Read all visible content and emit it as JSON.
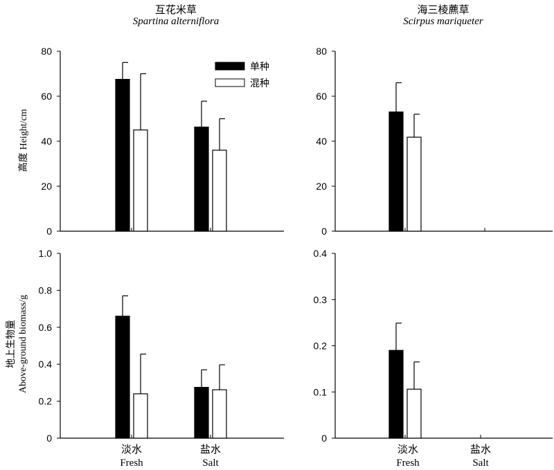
{
  "chart_data": [
    {
      "id": "p1",
      "type": "bar",
      "title": "互花米草",
      "subtitle": "Spartina alterniflora",
      "ylabel_cn": "高度",
      "ylabel": "Height/cm",
      "ylim": [
        0,
        80
      ],
      "yticks": [
        "0",
        "20",
        "40",
        "60",
        "80"
      ],
      "yticks_values": [
        0,
        20,
        40,
        60,
        80
      ],
      "categories": [
        "淡水",
        "盐水"
      ],
      "series": [
        {
          "name": "单种",
          "color": "#000000",
          "values": [
            67.5,
            46.3
          ],
          "errors": [
            7.5,
            11.5
          ]
        },
        {
          "name": "混种",
          "color": "#ffffff",
          "values": [
            45.0,
            36.0
          ],
          "errors": [
            25.0,
            14.0
          ]
        }
      ]
    },
    {
      "id": "p2",
      "type": "bar",
      "title": "海三棱藨草",
      "subtitle": "Scirpus mariqueter",
      "ylim": [
        0,
        80
      ],
      "yticks": [
        "0",
        "20",
        "40",
        "60",
        "80"
      ],
      "yticks_values": [
        0,
        20,
        40,
        60,
        80
      ],
      "categories": [
        "淡水",
        "盐水"
      ],
      "series": [
        {
          "name": "单种",
          "color": "#000000",
          "values": [
            53.0,
            null
          ],
          "errors": [
            13.0,
            null
          ]
        },
        {
          "name": "混种",
          "color": "#ffffff",
          "values": [
            41.8,
            null
          ],
          "errors": [
            10.2,
            null
          ]
        }
      ]
    },
    {
      "id": "p3",
      "type": "bar",
      "ylabel_cn": "地上生物量",
      "ylabel": "Above-ground biomass/g",
      "ylim": [
        0,
        1.0
      ],
      "yticks": [
        "0",
        "0.2",
        "0.4",
        "0.6",
        "0.8",
        "1.0"
      ],
      "yticks_values": [
        0,
        0.2,
        0.4,
        0.6,
        0.8,
        1.0
      ],
      "categories": [
        "淡水",
        "盐水"
      ],
      "categories_en": [
        "Fresh",
        "Salt"
      ],
      "series": [
        {
          "name": "单种",
          "color": "#000000",
          "values": [
            0.66,
            0.275
          ],
          "errors": [
            0.11,
            0.095
          ]
        },
        {
          "name": "混种",
          "color": "#ffffff",
          "values": [
            0.24,
            0.262
          ],
          "errors": [
            0.215,
            0.135
          ]
        }
      ]
    },
    {
      "id": "p4",
      "type": "bar",
      "ylim": [
        0,
        0.4
      ],
      "yticks": [
        "0",
        "0.1",
        "0.2",
        "0.3",
        "0.4"
      ],
      "yticks_values": [
        0,
        0.1,
        0.2,
        0.3,
        0.4
      ],
      "categories": [
        "淡水",
        "盐水"
      ],
      "categories_en": [
        "Fresh",
        "Salt"
      ],
      "series": [
        {
          "name": "单种",
          "color": "#000000",
          "values": [
            0.19,
            null
          ],
          "errors": [
            0.059,
            null
          ]
        },
        {
          "name": "混种",
          "color": "#ffffff",
          "values": [
            0.106,
            null
          ],
          "errors": [
            0.059,
            null
          ]
        }
      ]
    }
  ],
  "legend": {
    "items": [
      {
        "label": "单种",
        "color": "#000000"
      },
      {
        "label": "混种",
        "color": "#ffffff"
      }
    ]
  }
}
